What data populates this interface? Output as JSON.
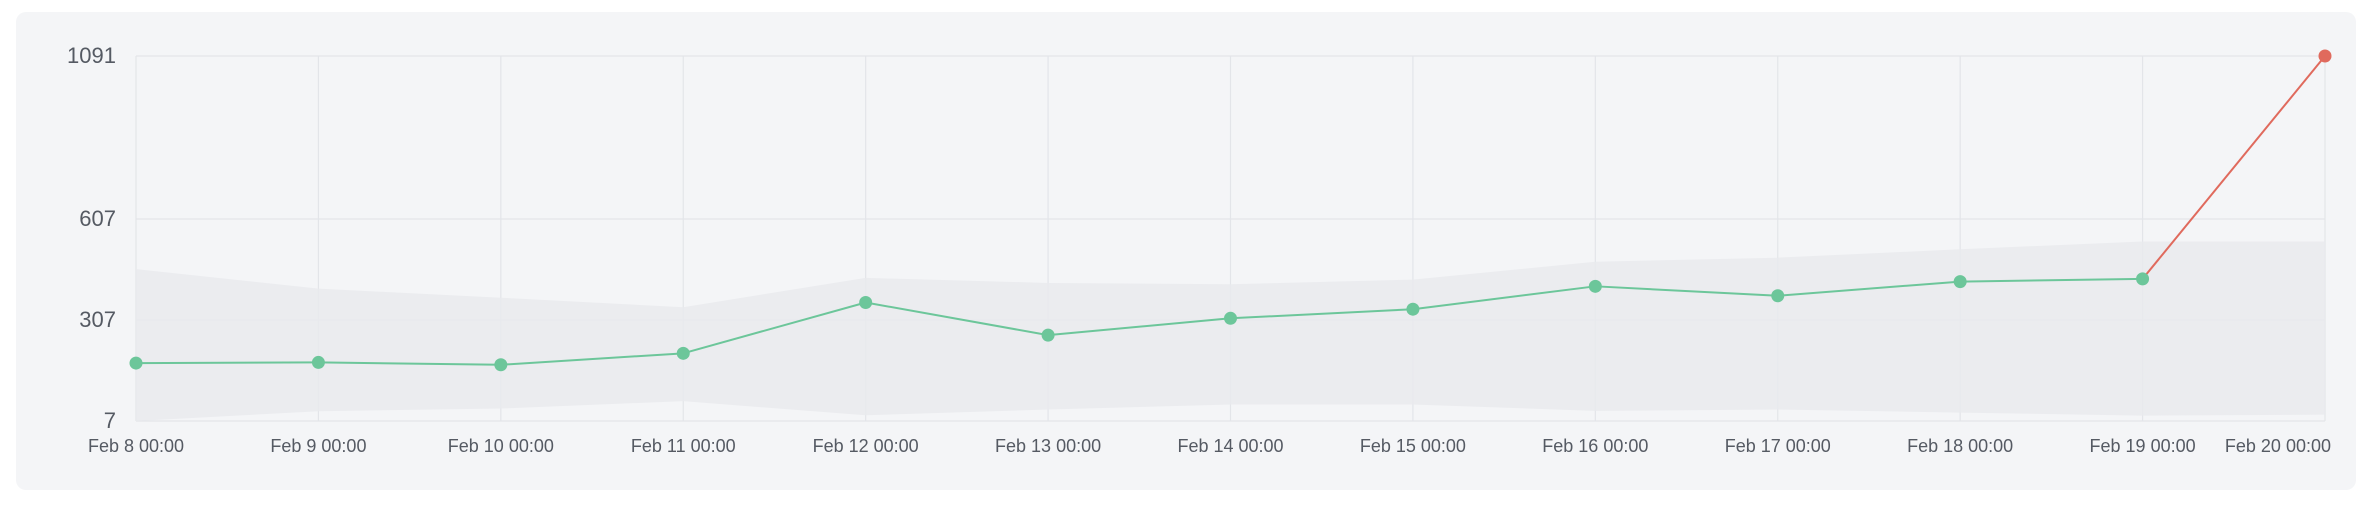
{
  "chart_data": {
    "type": "line",
    "x": [
      "Feb 8 00:00",
      "Feb 9 00:00",
      "Feb 10 00:00",
      "Feb 11 00:00",
      "Feb 12 00:00",
      "Feb 13 00:00",
      "Feb 14 00:00",
      "Feb 15 00:00",
      "Feb 16 00:00",
      "Feb 17 00:00",
      "Feb 18 00:00",
      "Feb 19 00:00",
      "Feb 20 00:00"
    ],
    "y_ticks": [
      7,
      307,
      607,
      1091
    ],
    "ylim": [
      7,
      1091
    ],
    "grid": true,
    "series": [
      {
        "values": [
          179,
          181,
          174,
          208,
          359,
          262,
          312,
          339,
          407,
          379,
          421,
          429,
          1091
        ],
        "color": "#6cc69a",
        "anomaly_color": "#e06a5d",
        "anomaly_indices": [
          12
        ]
      }
    ],
    "band": {
      "upper": [
        458,
        400,
        373,
        345,
        432,
        417,
        413,
        427,
        480,
        492,
        517,
        540,
        540
      ],
      "lower": [
        7,
        36,
        44,
        66,
        24,
        41,
        56,
        56,
        37,
        41,
        32,
        23,
        26
      ],
      "color": "#e9eaed"
    }
  }
}
